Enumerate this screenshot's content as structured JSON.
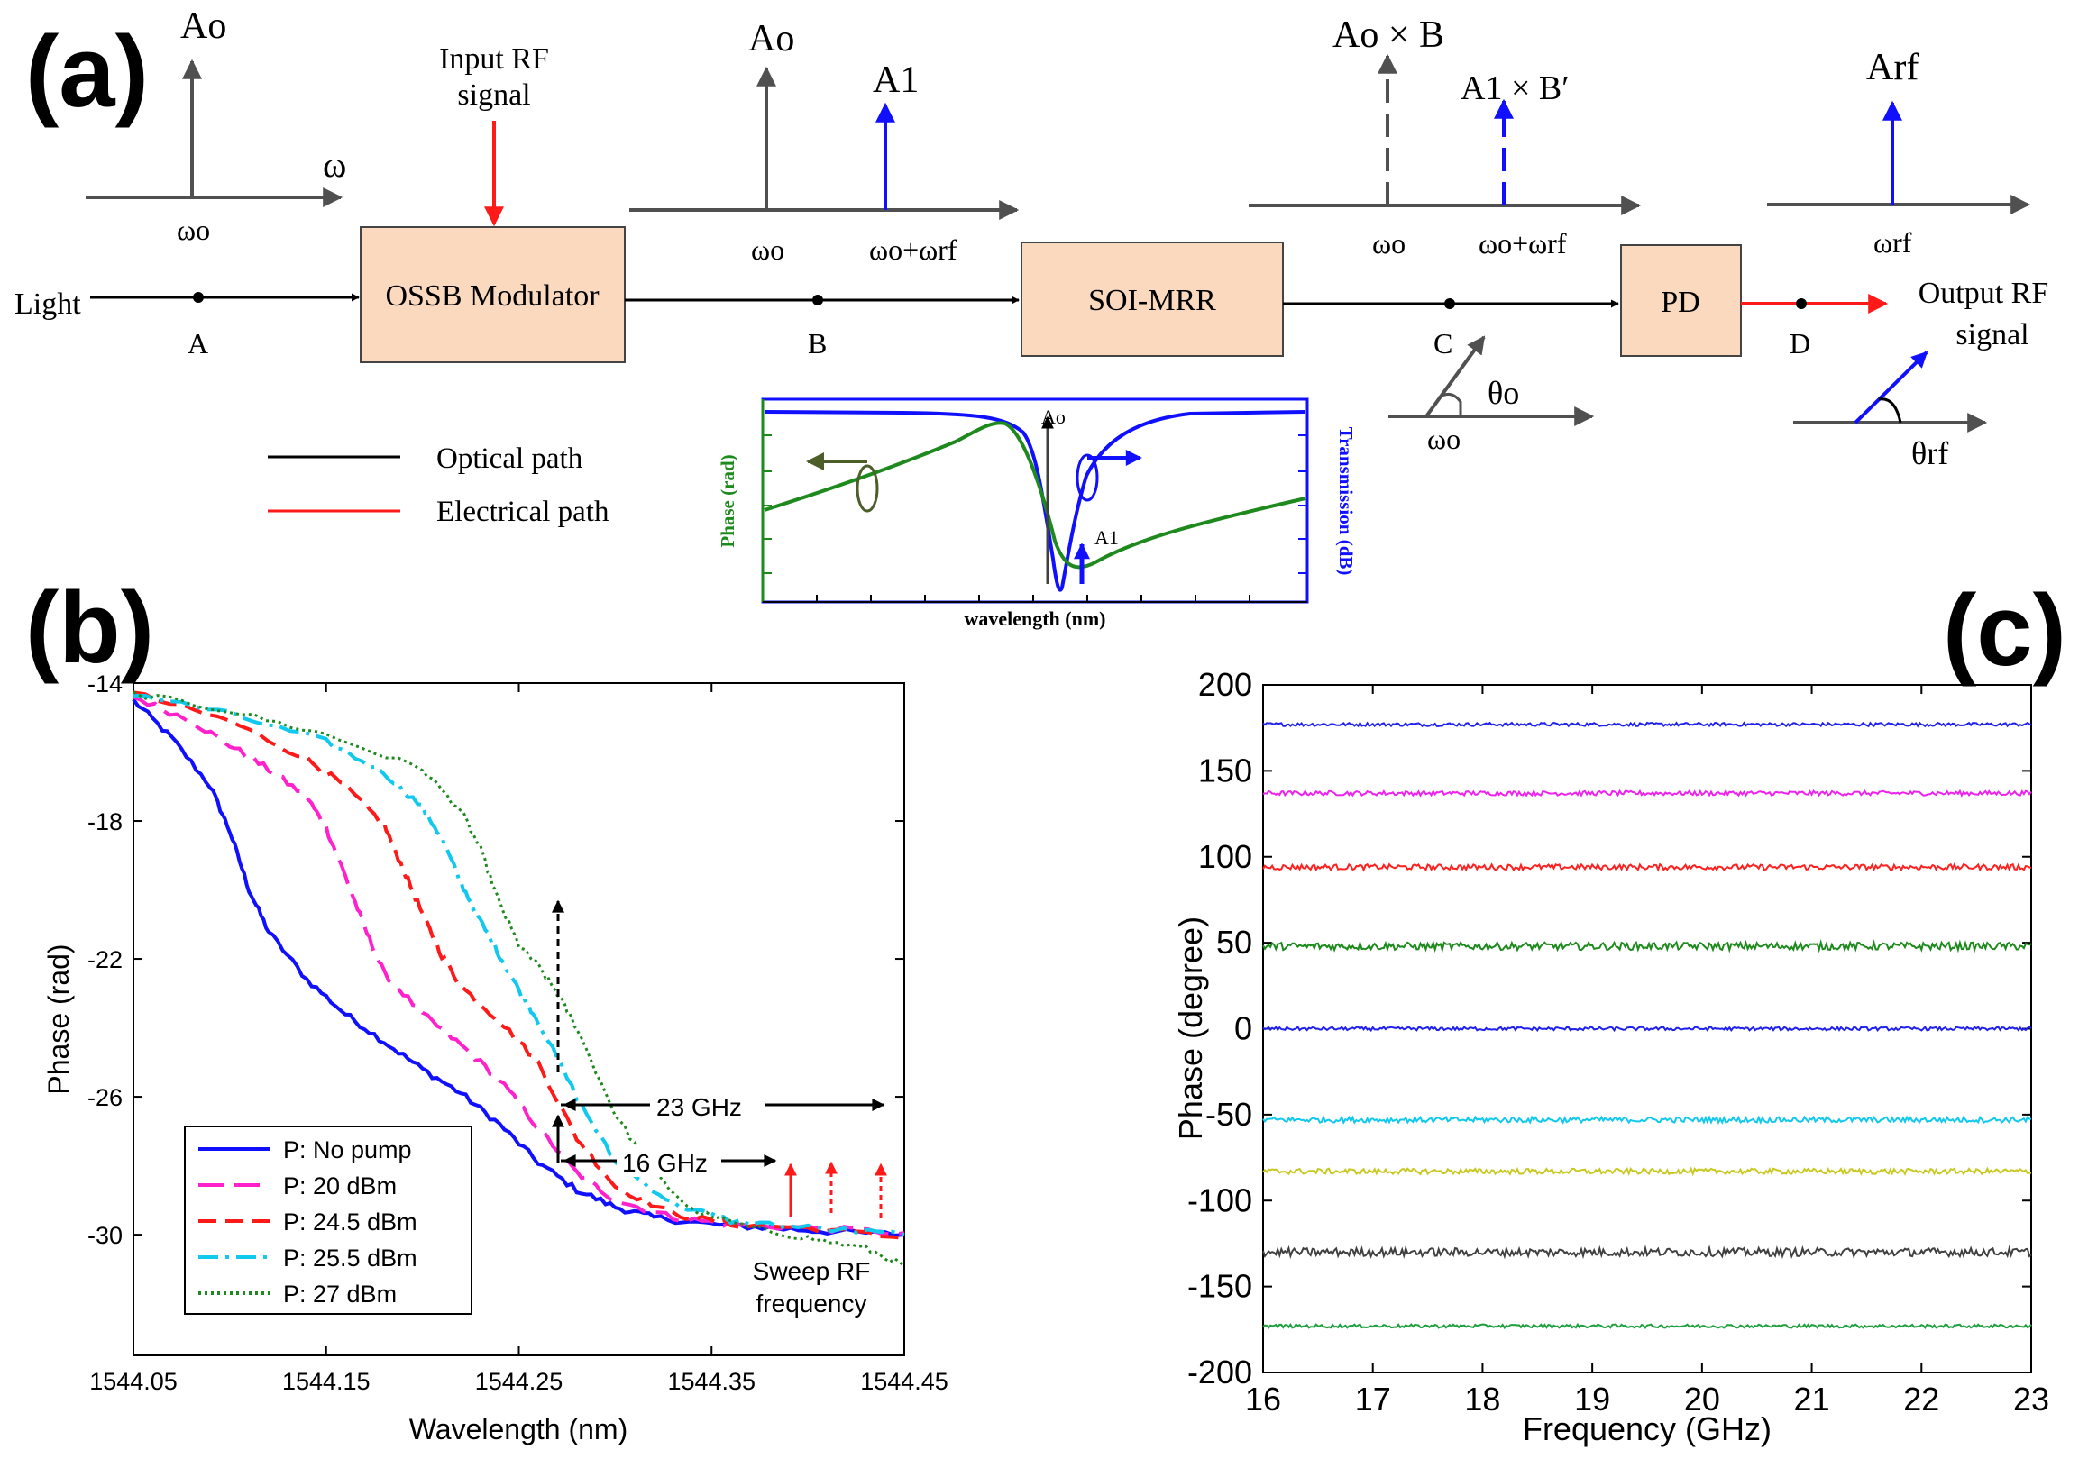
{
  "colors": {
    "black": "#000000",
    "gray": "#505050",
    "red": "#ff1a1a",
    "blue": "#1010ff",
    "green": "#1e8a1e",
    "box_fill": "#fbd9bf",
    "box_stroke": "#444444",
    "darkolive": "#4d5e2a"
  },
  "diagram": {
    "panel_label": "(a)",
    "light_label": "Light",
    "point_A": "A",
    "point_B": "B",
    "point_C": "C",
    "point_D": "D",
    "box_modulator": "OSSB Modulator",
    "box_mrr": "SOI-MRR",
    "box_pd": "PD",
    "input_rf_line1": "Input RF",
    "input_rf_line2": "signal",
    "output_rf_line1": "Output RF",
    "output_rf_line2": "signal",
    "s1_A": "Ao",
    "s1_omega": "ω",
    "s1_omega0": "ωo",
    "s2_A0": "Ao",
    "s2_A1": "A1",
    "s2_w0": "ωo",
    "s2_w0wrf": "ωo+ωrf",
    "s3_A0B": "Ao × B",
    "s3_A1B": "A1 × B′",
    "s3_w0": "ωo",
    "s3_w0wrf": "ωo+ωrf",
    "s4_Arf": "Arf",
    "s4_wrf": "ωrf",
    "phasor_C_theta": "θo",
    "phasor_C_w": "ωo",
    "phasor_D_theta": "θrf",
    "legend_optical": "Optical path",
    "legend_electrical": "Electrical path",
    "inset_xlabel": "wavelength (nm)",
    "inset_ylabel_left": "Phase (rad)",
    "inset_ylabel_right": "Transmission (dB)",
    "inset_A0": "Ao",
    "inset_A1": "A1"
  },
  "chart_data": [
    {
      "id": "b",
      "panel_label": "(b)",
      "type": "line",
      "xlabel": "Wavelength (nm)",
      "ylabel": "Phase (rad)",
      "xlim": [
        1544.05,
        1544.45
      ],
      "ylim": [
        -33.5,
        -14
      ],
      "xticks": [
        1544.05,
        1544.15,
        1544.25,
        1544.35,
        1544.45
      ],
      "xtick_labels": [
        "1544.05",
        "1544.15",
        "1544.25",
        "1544.35",
        "1544.45"
      ],
      "yticks": [
        -14,
        -18,
        -22,
        -26,
        -30
      ],
      "ytick_labels": [
        "-14",
        "-18",
        "-22",
        "-26",
        "-30"
      ],
      "series": [
        {
          "name": "P: No pump",
          "color": "#1010ff",
          "dash": "solid",
          "x": [
            1544.05,
            1544.07,
            1544.09,
            1544.1,
            1544.11,
            1544.12,
            1544.14,
            1544.16,
            1544.18,
            1544.2,
            1544.22,
            1544.24,
            1544.26,
            1544.28,
            1544.3,
            1544.32,
            1544.35,
            1544.38,
            1544.41,
            1544.45
          ],
          "y": [
            -14.5,
            -15.6,
            -17.0,
            -18.3,
            -20.0,
            -21.2,
            -22.6,
            -23.6,
            -24.4,
            -25.2,
            -25.9,
            -26.8,
            -27.9,
            -28.7,
            -29.2,
            -29.5,
            -29.7,
            -29.8,
            -29.9,
            -30.0
          ]
        },
        {
          "name": "P: 20 dBm",
          "color": "#ff22cc",
          "dash": "dash-long",
          "x": [
            1544.05,
            1544.08,
            1544.1,
            1544.12,
            1544.14,
            1544.15,
            1544.16,
            1544.17,
            1544.18,
            1544.2,
            1544.22,
            1544.24,
            1544.26,
            1544.28,
            1544.3,
            1544.33,
            1544.36,
            1544.4,
            1544.45
          ],
          "y": [
            -14.4,
            -15.1,
            -15.8,
            -16.5,
            -17.3,
            -18.2,
            -19.6,
            -21.1,
            -22.4,
            -23.6,
            -24.5,
            -25.5,
            -26.9,
            -28.2,
            -29.0,
            -29.5,
            -29.7,
            -29.8,
            -29.95
          ]
        },
        {
          "name": "P: 24.5 dBm",
          "color": "#ff1a1a",
          "dash": "dash",
          "x": [
            1544.05,
            1544.1,
            1544.14,
            1544.16,
            1544.18,
            1544.19,
            1544.2,
            1544.21,
            1544.22,
            1544.24,
            1544.26,
            1544.28,
            1544.3,
            1544.33,
            1544.36,
            1544.4,
            1544.45
          ],
          "y": [
            -14.3,
            -15.1,
            -16.2,
            -17.0,
            -18.1,
            -19.4,
            -20.7,
            -21.9,
            -22.8,
            -23.8,
            -25.0,
            -27.2,
            -28.6,
            -29.4,
            -29.7,
            -29.8,
            -30.1
          ]
        },
        {
          "name": "P: 25.5 dBm",
          "color": "#11c8ee",
          "dash": "dashdot",
          "x": [
            1544.05,
            1544.1,
            1544.15,
            1544.18,
            1544.2,
            1544.21,
            1544.22,
            1544.23,
            1544.24,
            1544.25,
            1544.26,
            1544.28,
            1544.3,
            1544.33,
            1544.36,
            1544.4,
            1544.45
          ],
          "y": [
            -14.3,
            -14.9,
            -15.7,
            -16.6,
            -17.6,
            -18.5,
            -19.8,
            -20.9,
            -21.9,
            -22.9,
            -23.8,
            -26.0,
            -27.9,
            -29.1,
            -29.6,
            -29.8,
            -30.0
          ]
        },
        {
          "name": "P: 27 dBm",
          "color": "#1e8a1e",
          "dash": "dot",
          "x": [
            1544.05,
            1544.1,
            1544.15,
            1544.2,
            1544.22,
            1544.23,
            1544.24,
            1544.25,
            1544.26,
            1544.27,
            1544.28,
            1544.3,
            1544.32,
            1544.34,
            1544.37,
            1544.4,
            1544.43,
            1544.45
          ],
          "y": [
            -14.3,
            -14.8,
            -15.5,
            -16.5,
            -17.7,
            -18.8,
            -20.4,
            -21.6,
            -22.2,
            -23.0,
            -24.0,
            -26.5,
            -28.2,
            -29.3,
            -29.8,
            -30.1,
            -30.4,
            -30.9
          ]
        }
      ],
      "annotations": {
        "label_23": "23 GHz",
        "label_16": "16 GHz",
        "sweep_line1": "Sweep RF",
        "sweep_line2": "frequency"
      }
    },
    {
      "id": "c",
      "panel_label": "(c)",
      "type": "line",
      "xlabel": "Frequency (GHz)",
      "ylabel": "Phase (degree)",
      "xlim": [
        16,
        23
      ],
      "ylim": [
        -200,
        200
      ],
      "xticks": [
        16,
        17,
        18,
        19,
        20,
        21,
        22,
        23
      ],
      "xtick_labels": [
        "16",
        "17",
        "18",
        "19",
        "20",
        "21",
        "22",
        "23"
      ],
      "yticks": [
        200,
        150,
        100,
        50,
        0,
        -50,
        -100,
        -150,
        -200
      ],
      "ytick_labels": [
        "200",
        "150",
        "100",
        "50",
        "0",
        "-50",
        "-100",
        "-150",
        "-200"
      ],
      "series": [
        {
          "name": "177",
          "color": "#2020ee",
          "value": 177,
          "noise": 1.0
        },
        {
          "name": "137",
          "color": "#ee22ee",
          "value": 137,
          "noise": 1.3
        },
        {
          "name": "94",
          "color": "#ff2020",
          "value": 94,
          "noise": 1.6
        },
        {
          "name": "48",
          "color": "#1e8a1e",
          "value": 48,
          "noise": 2.2
        },
        {
          "name": "0",
          "color": "#2020ee",
          "value": 0,
          "noise": 1.0
        },
        {
          "name": "-53",
          "color": "#11c8ee",
          "value": -53,
          "noise": 1.6
        },
        {
          "name": "-83",
          "color": "#c8c820",
          "value": -83,
          "noise": 1.6
        },
        {
          "name": "-130",
          "color": "#404040",
          "value": -130,
          "noise": 2.4
        },
        {
          "name": "-173",
          "color": "#1ea03e",
          "value": -173,
          "noise": 1.0
        }
      ]
    }
  ]
}
